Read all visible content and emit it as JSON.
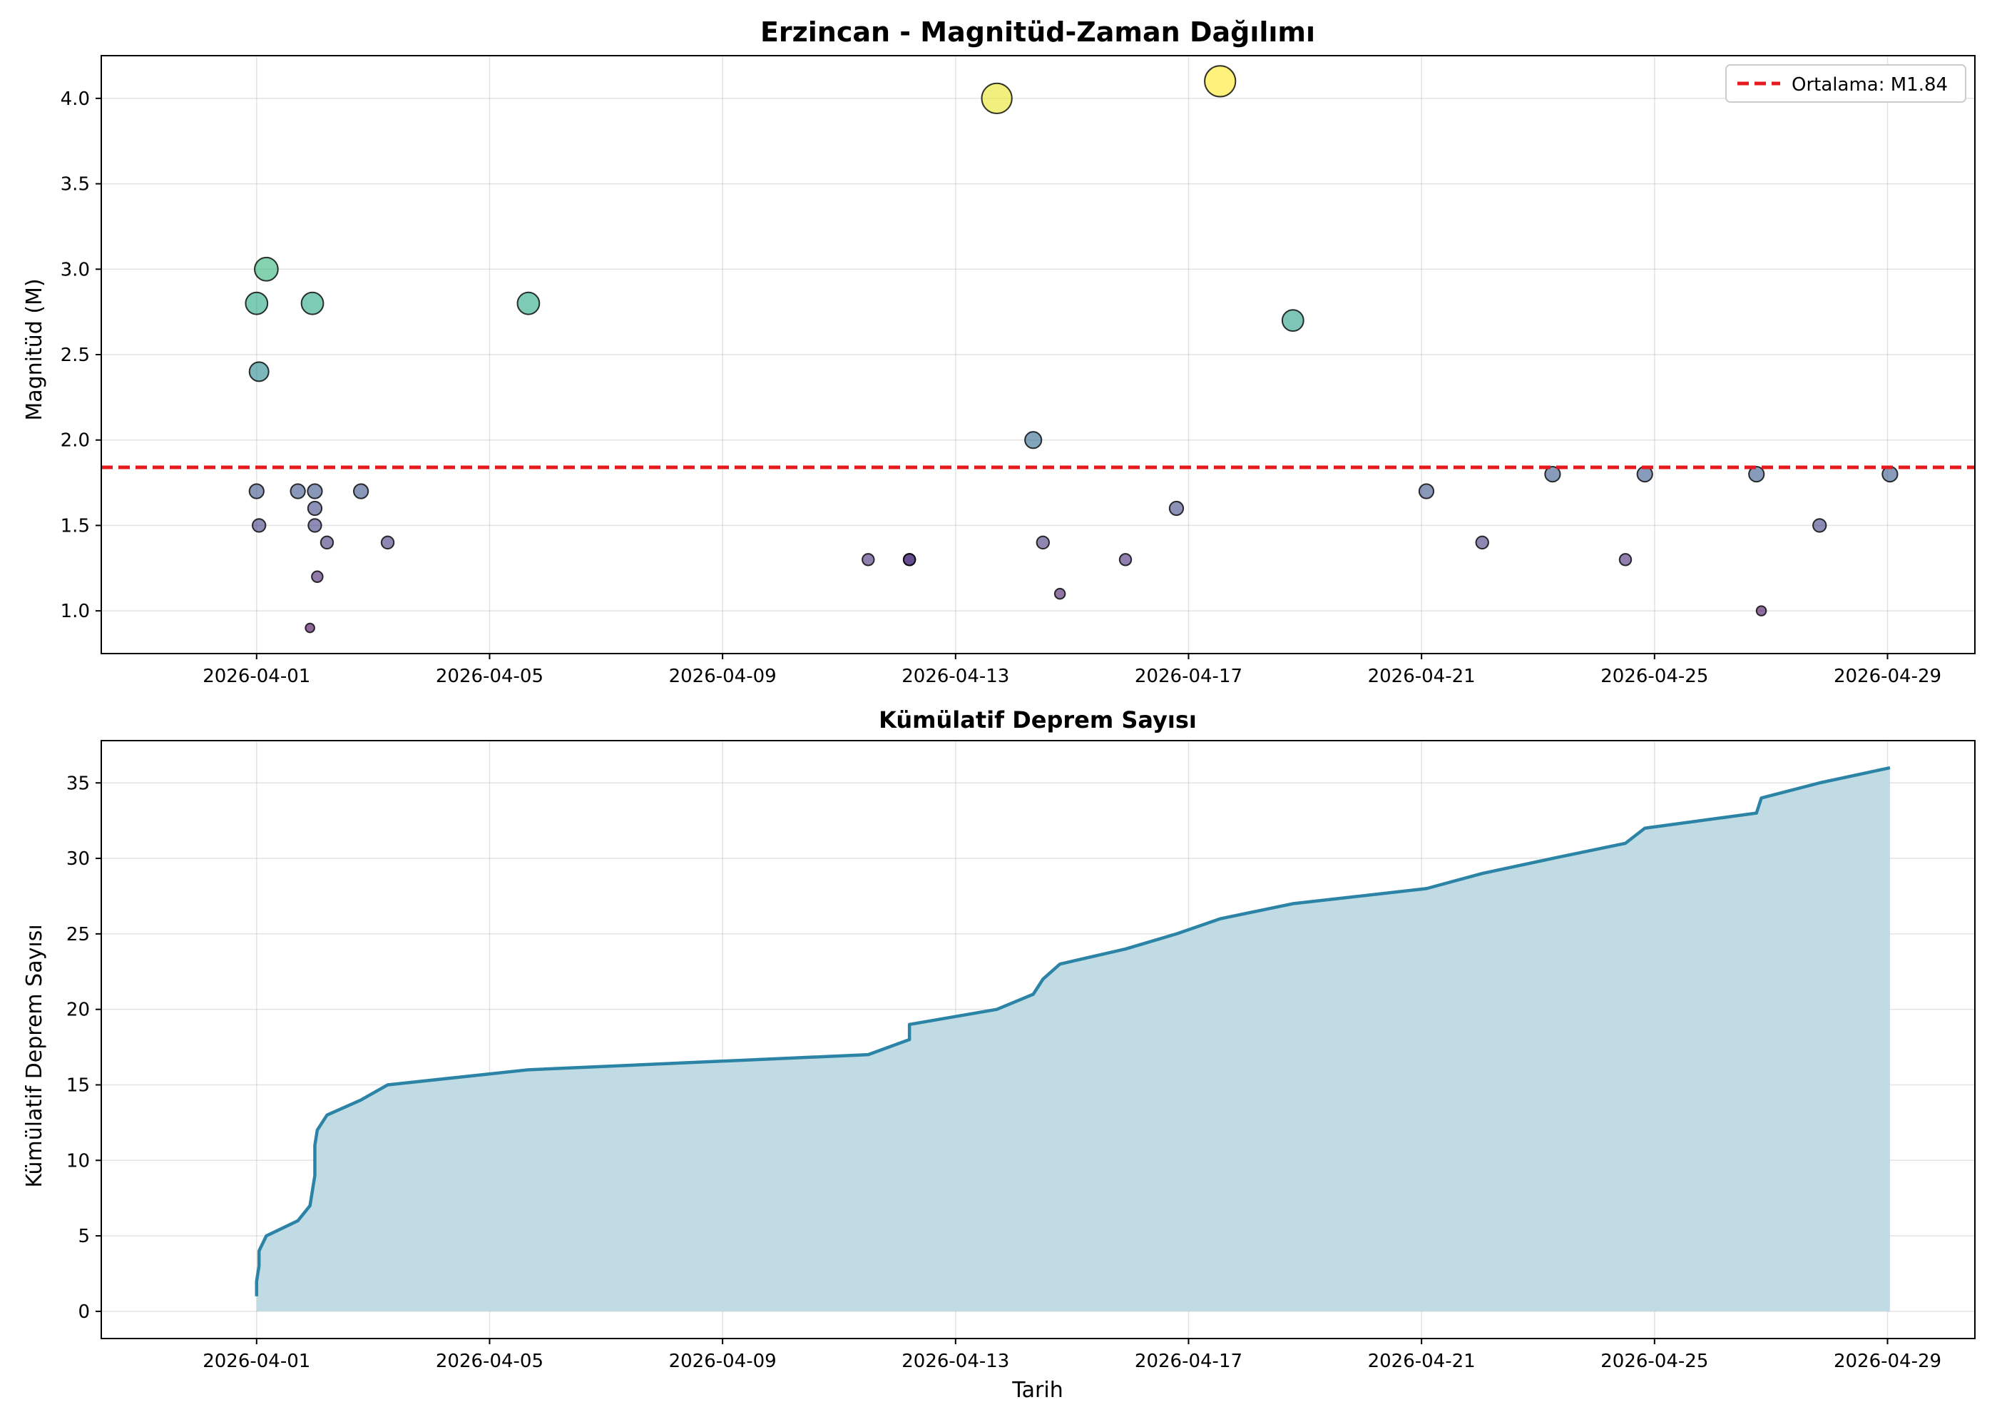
{
  "chart_data": [
    {
      "type": "scatter",
      "title": "Erzincan - Magnitüd-Zaman Dağılımı",
      "xlabel": "",
      "ylabel": "Magnitüd (M)",
      "xlim": [
        "2026-03-29T08:00",
        "2026-04-30T12:00"
      ],
      "ylim": [
        0.75,
        4.25
      ],
      "xticks": [
        "2026-04-01",
        "2026-04-05",
        "2026-04-09",
        "2026-04-13",
        "2026-04-17",
        "2026-04-21",
        "2026-04-25",
        "2026-04-29"
      ],
      "yticks": [
        "1.0",
        "1.5",
        "2.0",
        "2.5",
        "3.0",
        "3.5",
        "4.0"
      ],
      "grid": true,
      "legend": {
        "position": "top-right",
        "entries": [
          "Ortalama: M1.84"
        ]
      },
      "mean_line": {
        "value": 1.84,
        "color": "#e41a1c",
        "style": "dashed"
      },
      "colormap": "viridis",
      "points": [
        {
          "x": "2026-04-01T00:00",
          "y": 2.8
        },
        {
          "x": "2026-04-01T00:00",
          "y": 1.7
        },
        {
          "x": "2026-04-01T01:00",
          "y": 1.5
        },
        {
          "x": "2026-04-01T01:00",
          "y": 2.4
        },
        {
          "x": "2026-04-01T04:00",
          "y": 3.0
        },
        {
          "x": "2026-04-01T17:00",
          "y": 1.7
        },
        {
          "x": "2026-04-01T22:00",
          "y": 0.9
        },
        {
          "x": "2026-04-01T23:00",
          "y": 2.8
        },
        {
          "x": "2026-04-02T00:00",
          "y": 1.7
        },
        {
          "x": "2026-04-02T00:00",
          "y": 1.6
        },
        {
          "x": "2026-04-02T00:00",
          "y": 1.5
        },
        {
          "x": "2026-04-02T01:00",
          "y": 1.2
        },
        {
          "x": "2026-04-02T05:00",
          "y": 1.4
        },
        {
          "x": "2026-04-02T19:00",
          "y": 1.7
        },
        {
          "x": "2026-04-03T06:00",
          "y": 1.4
        },
        {
          "x": "2026-04-05T16:00",
          "y": 2.8
        },
        {
          "x": "2026-04-11T12:00",
          "y": 1.3
        },
        {
          "x": "2026-04-12T05:00",
          "y": 1.3
        },
        {
          "x": "2026-04-12T05:00",
          "y": 1.3
        },
        {
          "x": "2026-04-13T17:00",
          "y": 4.0
        },
        {
          "x": "2026-04-14T08:00",
          "y": 2.0
        },
        {
          "x": "2026-04-14T12:00",
          "y": 1.4
        },
        {
          "x": "2026-04-14T19:00",
          "y": 1.1
        },
        {
          "x": "2026-04-15T22:00",
          "y": 1.3
        },
        {
          "x": "2026-04-16T19:00",
          "y": 1.6
        },
        {
          "x": "2026-04-17T13:00",
          "y": 4.1
        },
        {
          "x": "2026-04-18T19:00",
          "y": 2.7
        },
        {
          "x": "2026-04-21T02:00",
          "y": 1.7
        },
        {
          "x": "2026-04-22T01:00",
          "y": 1.4
        },
        {
          "x": "2026-04-23T06:00",
          "y": 1.8
        },
        {
          "x": "2026-04-24T12:00",
          "y": 1.3
        },
        {
          "x": "2026-04-24T20:00",
          "y": 1.8
        },
        {
          "x": "2026-04-26T18:00",
          "y": 1.8
        },
        {
          "x": "2026-04-26T20:00",
          "y": 1.0
        },
        {
          "x": "2026-04-27T20:00",
          "y": 1.5
        },
        {
          "x": "2026-04-29T01:00",
          "y": 1.8
        }
      ]
    },
    {
      "type": "area",
      "title": "Kümülatif Deprem Sayısı",
      "xlabel": "Tarih",
      "ylabel": "Kümülatif Deprem Sayısı",
      "xlim": [
        "2026-03-29T08:00",
        "2026-04-30T12:00"
      ],
      "ylim": [
        -1.8,
        37.8
      ],
      "xticks": [
        "2026-04-01",
        "2026-04-05",
        "2026-04-09",
        "2026-04-13",
        "2026-04-17",
        "2026-04-21",
        "2026-04-25",
        "2026-04-29"
      ],
      "yticks": [
        "0",
        "5",
        "10",
        "15",
        "20",
        "25",
        "30",
        "35"
      ],
      "grid": true,
      "line_color": "#2b83a6",
      "fill_color": "#bed9e4",
      "series": [
        {
          "x": [
            "2026-04-01T00:00",
            "2026-04-01T00:00",
            "2026-04-01T01:00",
            "2026-04-01T01:00",
            "2026-04-01T04:00",
            "2026-04-01T17:00",
            "2026-04-01T22:00",
            "2026-04-01T23:00",
            "2026-04-02T00:00",
            "2026-04-02T00:00",
            "2026-04-02T00:00",
            "2026-04-02T01:00",
            "2026-04-02T05:00",
            "2026-04-02T19:00",
            "2026-04-03T06:00",
            "2026-04-05T16:00",
            "2026-04-11T12:00",
            "2026-04-12T05:00",
            "2026-04-12T05:00",
            "2026-04-13T17:00",
            "2026-04-14T08:00",
            "2026-04-14T12:00",
            "2026-04-14T19:00",
            "2026-04-15T22:00",
            "2026-04-16T19:00",
            "2026-04-17T13:00",
            "2026-04-18T19:00",
            "2026-04-21T02:00",
            "2026-04-22T01:00",
            "2026-04-23T06:00",
            "2026-04-24T12:00",
            "2026-04-24T20:00",
            "2026-04-26T18:00",
            "2026-04-26T20:00",
            "2026-04-27T20:00",
            "2026-04-29T01:00"
          ],
          "values": [
            1,
            2,
            3,
            4,
            5,
            6,
            7,
            8,
            9,
            10,
            11,
            12,
            13,
            14,
            15,
            16,
            17,
            18,
            19,
            20,
            21,
            22,
            23,
            24,
            25,
            26,
            27,
            28,
            29,
            30,
            31,
            32,
            33,
            34,
            35,
            36
          ]
        }
      ]
    }
  ]
}
